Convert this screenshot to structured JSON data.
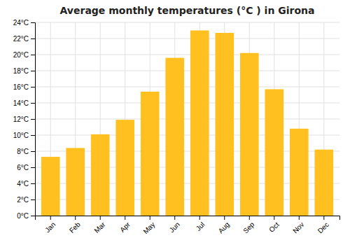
{
  "chart_data": {
    "type": "bar",
    "title": "Average monthly temperatures (°C ) in Girona",
    "categories": [
      "Jan",
      "Feb",
      "Mar",
      "Apr",
      "May",
      "Jun",
      "Jul",
      "Aug",
      "Sep",
      "Oct",
      "Nov",
      "Dec"
    ],
    "values": [
      7.3,
      8.4,
      10.1,
      11.9,
      15.4,
      19.6,
      23.0,
      22.7,
      20.2,
      15.7,
      10.8,
      8.2
    ],
    "color": "#FFC020",
    "ylim": [
      0,
      24
    ],
    "yticks": [
      {
        "value": 0,
        "label": "0°C"
      },
      {
        "value": 2,
        "label": "2°C"
      },
      {
        "value": 4,
        "label": "4°C"
      },
      {
        "value": 6,
        "label": "6°C"
      },
      {
        "value": 8,
        "label": "8°C"
      },
      {
        "value": 10,
        "label": "10°C"
      },
      {
        "value": 12,
        "label": "12°C"
      },
      {
        "value": 14,
        "label": "14°C"
      },
      {
        "value": 16,
        "label": "16°C"
      },
      {
        "value": 18,
        "label": "18°C"
      },
      {
        "value": 20,
        "label": "20°C"
      },
      {
        "value": 22,
        "label": "22°C"
      },
      {
        "value": 24,
        "label": "24°C"
      }
    ],
    "grid": true
  }
}
